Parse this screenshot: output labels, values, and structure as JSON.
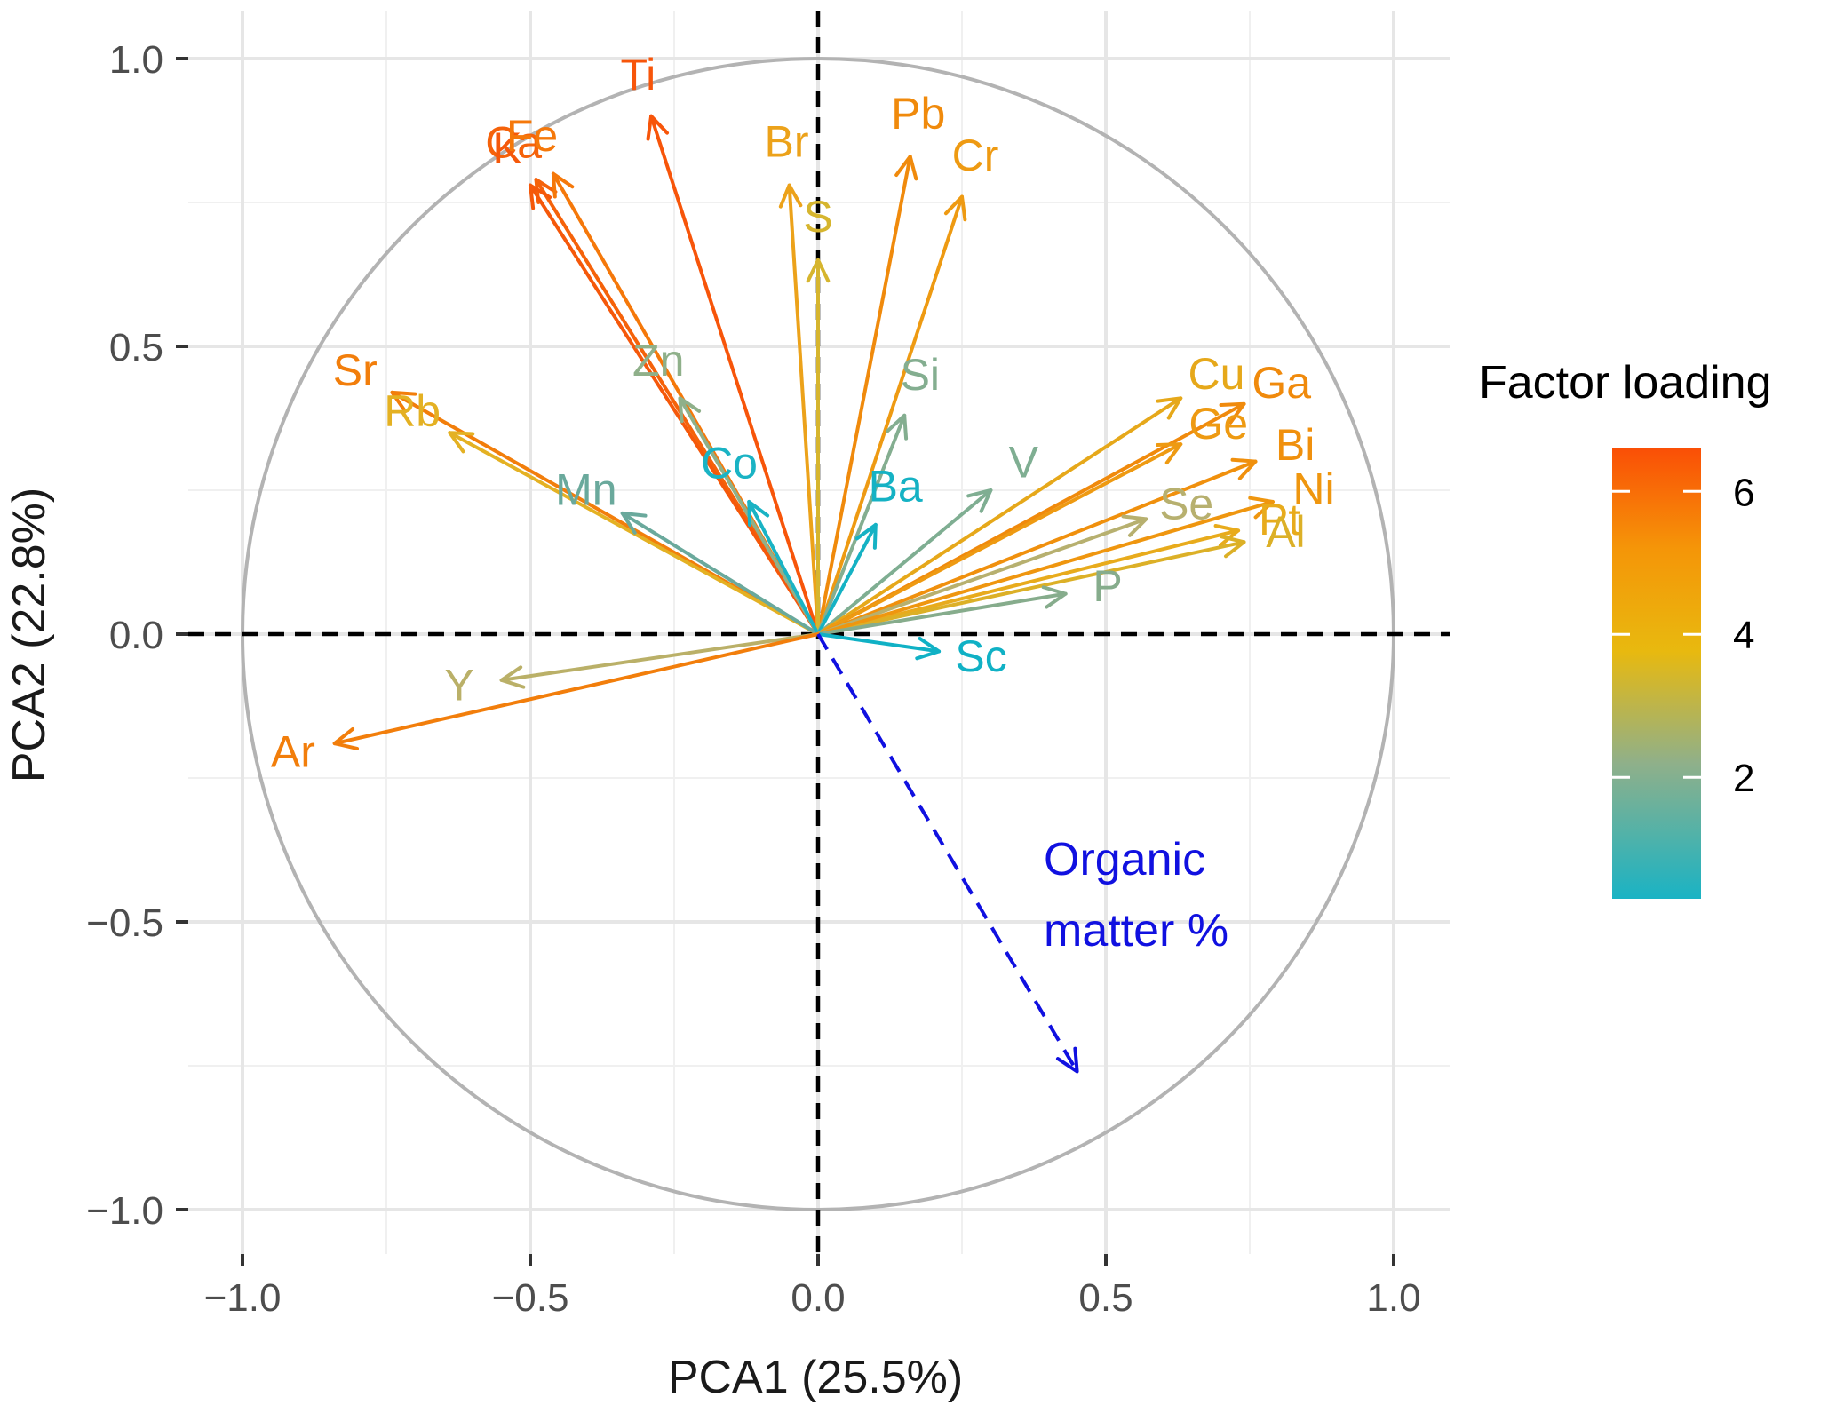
{
  "chart_data": {
    "type": "scatter",
    "subtype": "pca-biplot",
    "xlabel": "PCA1 (25.5%)",
    "ylabel": "PCA2 (22.8%)",
    "xlim": [
      -1.1,
      1.1
    ],
    "ylim": [
      -1.1,
      1.1
    ],
    "x_ticks": [
      -1.0,
      -0.5,
      0.0,
      0.5,
      1.0
    ],
    "x_tick_labels": [
      "−1.0",
      "−0.5",
      "0.0",
      "0.5",
      "1.0"
    ],
    "y_ticks": [
      -1.0,
      -0.5,
      0.0,
      0.5,
      1.0
    ],
    "y_tick_labels": [
      "−1.0",
      "−0.5",
      "0.0",
      "0.5",
      "1.0"
    ],
    "grid": true,
    "unit_circle": true,
    "reference_lines": [
      0,
      0
    ],
    "legend": {
      "title": "Factor loading",
      "placement": "right",
      "range": [
        0.3,
        6.6
      ],
      "ticks": [
        2,
        4,
        6
      ],
      "tick_labels": [
        "2",
        "4",
        "6"
      ],
      "gradient": [
        "#1ab3c4",
        "#8fb08a",
        "#e8b90f",
        "#f59508",
        "#fa4f06"
      ]
    },
    "series": [
      {
        "name": "Ti",
        "x": -0.29,
        "y": 0.9,
        "loading": 6.5,
        "color": "#f7550a"
      },
      {
        "name": "Ca",
        "x": -0.49,
        "y": 0.79,
        "loading": 6.2,
        "color": "#f5620a"
      },
      {
        "name": "K",
        "x": -0.5,
        "y": 0.78,
        "loading": 6.3,
        "color": "#f5580a"
      },
      {
        "name": "Fe",
        "x": -0.46,
        "y": 0.8,
        "loading": 5.6,
        "color": "#f5780a"
      },
      {
        "name": "Br",
        "x": -0.05,
        "y": 0.78,
        "loading": 4.3,
        "color": "#eca21a"
      },
      {
        "name": "Pb",
        "x": 0.16,
        "y": 0.83,
        "loading": 4.8,
        "color": "#f08a0c"
      },
      {
        "name": "Cr",
        "x": 0.25,
        "y": 0.76,
        "loading": 4.5,
        "color": "#ee9a12"
      },
      {
        "name": "S",
        "x": 0.0,
        "y": 0.65,
        "loading": 3.4,
        "color": "#d6b52e"
      },
      {
        "name": "Sr",
        "x": -0.74,
        "y": 0.42,
        "loading": 5.3,
        "color": "#f27e0b"
      },
      {
        "name": "Rb",
        "x": -0.64,
        "y": 0.35,
        "loading": 3.8,
        "color": "#e4b123"
      },
      {
        "name": "Zn",
        "x": -0.24,
        "y": 0.41,
        "loading": 2.0,
        "color": "#8fb08a"
      },
      {
        "name": "Mn",
        "x": -0.34,
        "y": 0.21,
        "loading": 1.4,
        "color": "#6aa99c"
      },
      {
        "name": "Co",
        "x": -0.12,
        "y": 0.23,
        "loading": 0.5,
        "color": "#1ab3c4"
      },
      {
        "name": "Si",
        "x": 0.15,
        "y": 0.38,
        "loading": 1.8,
        "color": "#84ae90"
      },
      {
        "name": "Ba",
        "x": 0.1,
        "y": 0.19,
        "loading": 0.4,
        "color": "#15b2c4"
      },
      {
        "name": "V",
        "x": 0.3,
        "y": 0.25,
        "loading": 1.7,
        "color": "#7fae92"
      },
      {
        "name": "Cu",
        "x": 0.63,
        "y": 0.41,
        "loading": 4.0,
        "color": "#e6a81a"
      },
      {
        "name": "Ga",
        "x": 0.74,
        "y": 0.4,
        "loading": 5.0,
        "color": "#f08a0c"
      },
      {
        "name": "Ge",
        "x": 0.63,
        "y": 0.33,
        "loading": 4.6,
        "color": "#ee9a12"
      },
      {
        "name": "Bi",
        "x": 0.76,
        "y": 0.3,
        "loading": 4.9,
        "color": "#f0900d"
      },
      {
        "name": "Se",
        "x": 0.57,
        "y": 0.2,
        "loading": 2.6,
        "color": "#b7b06f"
      },
      {
        "name": "Pt",
        "x": 0.73,
        "y": 0.18,
        "loading": 3.9,
        "color": "#e8ab1c"
      },
      {
        "name": "Al",
        "x": 0.74,
        "y": 0.16,
        "loading": 3.6,
        "color": "#dcb027"
      },
      {
        "name": "Ni",
        "x": 0.79,
        "y": 0.23,
        "loading": 4.7,
        "color": "#ef960f"
      },
      {
        "name": "P",
        "x": 0.43,
        "y": 0.07,
        "loading": 1.6,
        "color": "#86ac8c"
      },
      {
        "name": "Sc",
        "x": 0.21,
        "y": -0.03,
        "loading": 0.3,
        "color": "#10b1c5"
      },
      {
        "name": "Y",
        "x": -0.55,
        "y": -0.08,
        "loading": 2.5,
        "color": "#bab068"
      },
      {
        "name": "Ar",
        "x": -0.84,
        "y": -0.19,
        "loading": 5.4,
        "color": "#f27e0b"
      }
    ],
    "supplementary": {
      "name": "Organic matter %",
      "x": 0.45,
      "y": -0.76,
      "color": "#1010e0",
      "label_lines": [
        "Organic",
        "matter %"
      ]
    }
  }
}
